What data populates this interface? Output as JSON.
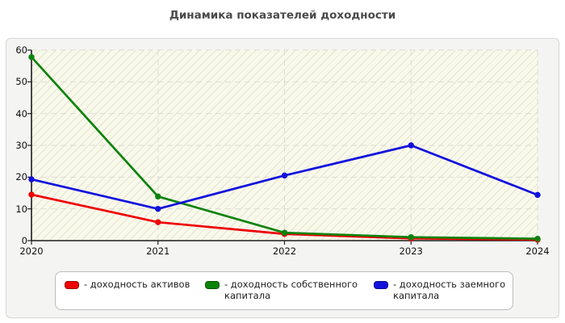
{
  "page": {
    "title": "Динамика показателей доходности"
  },
  "chart_data": {
    "type": "line",
    "title": "Динамика показателей доходности",
    "x": [
      "2020",
      "2021",
      "2022",
      "2023",
      "2024"
    ],
    "xlabel": "",
    "ylabel": "",
    "ylim": [
      0,
      60
    ],
    "yticks": [
      0,
      10,
      20,
      30,
      40,
      50,
      60
    ],
    "grid": true,
    "grid_style": "dashed",
    "plot_background": "#f9f9ea",
    "legend_position": "bottom",
    "series": [
      {
        "name": "доходность активов",
        "color": "#ee0000",
        "values": [
          14.5,
          5.8,
          2.1,
          0.7,
          0.3
        ]
      },
      {
        "name": "доходность собственного капитала",
        "color": "#0b830b",
        "values": [
          57.8,
          13.9,
          2.5,
          1.1,
          0.6
        ]
      },
      {
        "name": "доходность заемного капитала",
        "color": "#1111dd",
        "values": [
          19.3,
          10.0,
          20.5,
          30.0,
          14.4
        ]
      }
    ]
  },
  "legend": {
    "items": [
      {
        "label": "- доходность активов",
        "color": "#ee0000"
      },
      {
        "label": "- доходность собственного капитала",
        "color": "#0b830b"
      },
      {
        "label": "- доходность заемного капитала",
        "color": "#1111dd"
      }
    ]
  }
}
